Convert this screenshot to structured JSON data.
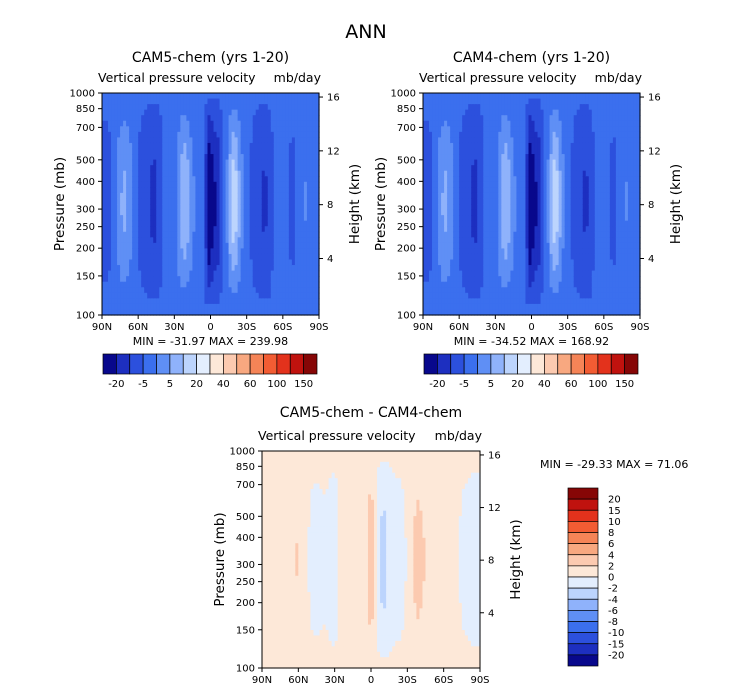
{
  "figure": {
    "title": "ANN"
  },
  "chart_data": [
    {
      "type": "heatmap",
      "title": "CAM5-chem (yrs 1-20)",
      "subtitle_left": "Vertical pressure velocity",
      "subtitle_right": "mb/day",
      "ylabel": "Pressure (mb)",
      "y2label": "Height (km)",
      "x_ticks": [
        "90N",
        "60N",
        "30N",
        "0",
        "30S",
        "60S",
        "90S"
      ],
      "y_ticks": [
        "100",
        "150",
        "200",
        "250",
        "300",
        "400",
        "500",
        "700",
        "850",
        "1000"
      ],
      "y2_ticks": [
        "16",
        "12",
        "8",
        "4"
      ],
      "ylim": [
        1000,
        100
      ],
      "stats_text": "MIN = -31.97   MAX = 239.98",
      "min": -31.97,
      "max": 239.98,
      "levels": [
        "-20",
        "-5",
        "5",
        "20",
        "40",
        "60",
        "100",
        "150"
      ],
      "colors": [
        "#08088c",
        "#1d2fc0",
        "#2c50dd",
        "#3b6fee",
        "#5f8ff5",
        "#8fb2fb",
        "#bcd4fd",
        "#e3eefe",
        "#fde8d8",
        "#fccab0",
        "#f8a880",
        "#f58457",
        "#f25c33",
        "#e3321c",
        "#c0120e",
        "#860606"
      ]
    },
    {
      "type": "heatmap",
      "title": "CAM4-chem (yrs 1-20)",
      "subtitle_left": "Vertical pressure velocity",
      "subtitle_right": "mb/day",
      "ylabel": "Pressure (mb)",
      "y2label": "Height (km)",
      "x_ticks": [
        "90N",
        "60N",
        "30N",
        "0",
        "30S",
        "60S",
        "90S"
      ],
      "y_ticks": [
        "100",
        "150",
        "200",
        "250",
        "300",
        "400",
        "500",
        "700",
        "850",
        "1000"
      ],
      "y2_ticks": [
        "16",
        "12",
        "8",
        "4"
      ],
      "ylim": [
        1000,
        100
      ],
      "stats_text": "MIN = -34.52   MAX = 168.92",
      "min": -34.52,
      "max": 168.92,
      "levels": [
        "-20",
        "-5",
        "5",
        "20",
        "40",
        "60",
        "100",
        "150"
      ],
      "colors": [
        "#08088c",
        "#1d2fc0",
        "#2c50dd",
        "#3b6fee",
        "#5f8ff5",
        "#8fb2fb",
        "#bcd4fd",
        "#e3eefe",
        "#fde8d8",
        "#fccab0",
        "#f8a880",
        "#f58457",
        "#f25c33",
        "#e3321c",
        "#c0120e",
        "#860606"
      ]
    },
    {
      "type": "heatmap",
      "title": "CAM5-chem - CAM4-chem",
      "subtitle_left": "Vertical pressure velocity",
      "subtitle_right": "mb/day",
      "ylabel": "Pressure (mb)",
      "y2label": "Height (km)",
      "x_ticks": [
        "90N",
        "60N",
        "30N",
        "0",
        "30S",
        "60S",
        "90S"
      ],
      "y_ticks": [
        "100",
        "150",
        "200",
        "250",
        "300",
        "400",
        "500",
        "700",
        "850",
        "1000"
      ],
      "y2_ticks": [
        "16",
        "12",
        "8",
        "4"
      ],
      "ylim": [
        1000,
        100
      ],
      "stats_text": "MIN = -29.33   MAX =  71.06",
      "min": -29.33,
      "max": 71.06,
      "levels": [
        "20",
        "15",
        "10",
        "8",
        "6",
        "4",
        "2",
        "0",
        "-2",
        "-4",
        "-6",
        "-8",
        "-10",
        "-15",
        "-20"
      ],
      "colors": [
        "#860606",
        "#c0120e",
        "#e3321c",
        "#f25c33",
        "#f58457",
        "#f8a880",
        "#fccab0",
        "#fde8d8",
        "#e3eefe",
        "#bcd4fd",
        "#8fb2fb",
        "#5f8ff5",
        "#3b6fee",
        "#2c50dd",
        "#1d2fc0",
        "#08088c"
      ]
    }
  ]
}
